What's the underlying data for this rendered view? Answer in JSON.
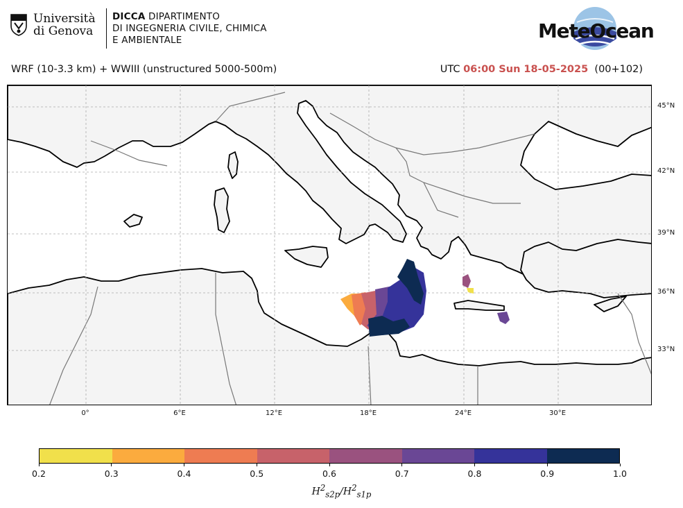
{
  "header": {
    "university_line1": "Università",
    "university_line2": "di Genova",
    "dept_bold": "DICCA",
    "dept_line1": "DIPARTIMENTO",
    "dept_line2": "DI INGEGNERIA CIVILE, CHIMICA",
    "dept_line3": "E AMBIENTALE",
    "brand": "MeteOcean"
  },
  "run_title": "WRF (10-3.3 km) + WWIII (unstructured 5000-500m)",
  "valid": {
    "prefix": "UTC",
    "time": "06:00 Sun 18-05-2025",
    "lead": "(00+102)"
  },
  "map": {
    "land_color": "#f4f4f4",
    "sea_color": "#ffffff",
    "coast_color": "#000000",
    "border_color": "#777777",
    "grid": true,
    "lat_labels": [
      "45°N",
      "42°N",
      "39°N",
      "36°N",
      "33°N"
    ],
    "lon_labels": [
      "0°",
      "6°E",
      "12°E",
      "18°E",
      "24°E",
      "30°E"
    ]
  },
  "colorbar": {
    "colors": [
      "#f1e04b",
      "#fbab3e",
      "#ee7c52",
      "#c7626a",
      "#9a527f",
      "#6a4795",
      "#35339a",
      "#0d2b52"
    ],
    "ticks": [
      "0.2",
      "0.3",
      "0.4",
      "0.5",
      "0.6",
      "0.7",
      "0.8",
      "0.9",
      "1.0"
    ],
    "label": "H²s2p/H²s1p",
    "label_main": "H",
    "label_sub1": "s2p",
    "label_sub2": "s1p"
  }
}
